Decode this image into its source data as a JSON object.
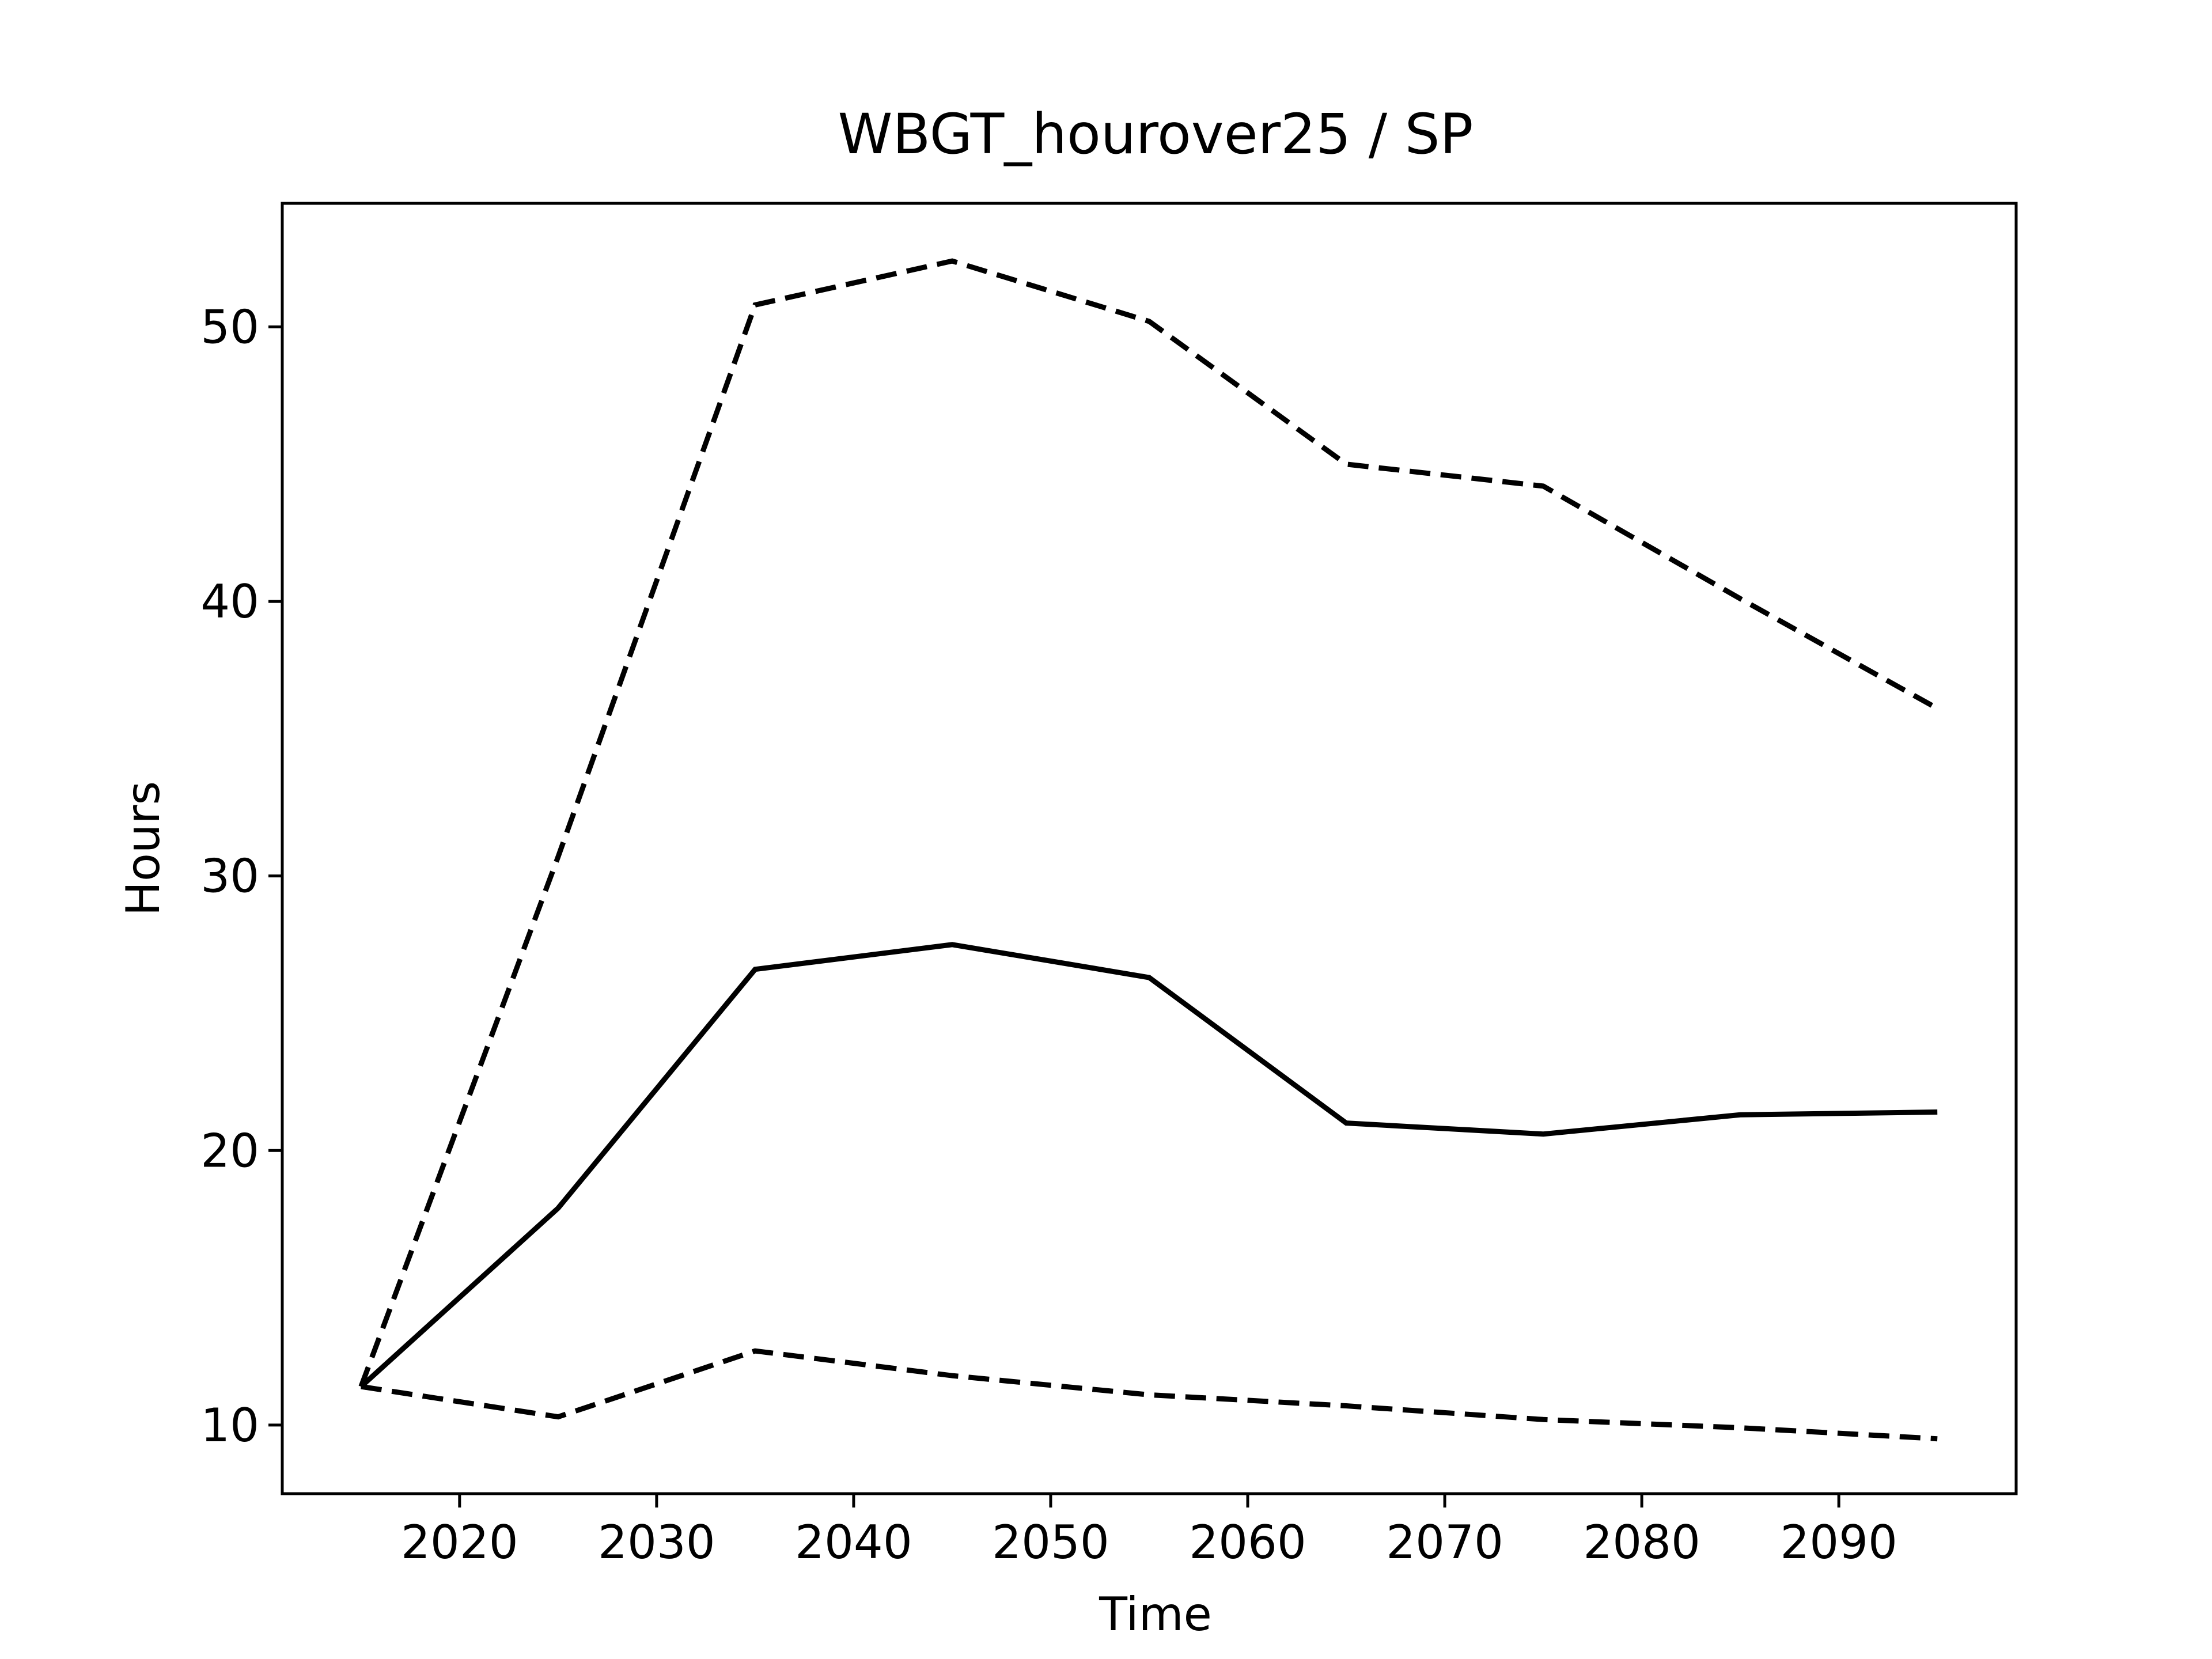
{
  "chart_data": {
    "type": "line",
    "title": "WBGT_hourover25 / SP",
    "xlabel": "Time",
    "ylabel": "Hours",
    "xlim": [
      2011,
      2099
    ],
    "ylim": [
      7.5,
      54.5
    ],
    "xticks": [
      2020,
      2030,
      2040,
      2050,
      2060,
      2070,
      2080,
      2090
    ],
    "yticks": [
      10,
      20,
      30,
      40,
      50
    ],
    "grid": false,
    "x": [
      2015,
      2025,
      2035,
      2045,
      2055,
      2065,
      2075,
      2085,
      2095
    ],
    "series": [
      {
        "style": "dashed",
        "color": "#000000",
        "values": [
          11.4,
          30.7,
          50.8,
          52.4,
          50.2,
          45.0,
          44.2,
          40.1,
          36.1
        ]
      },
      {
        "style": "solid",
        "color": "#000000",
        "values": [
          11.4,
          17.9,
          26.6,
          27.5,
          26.3,
          21.0,
          20.6,
          21.3,
          21.4
        ]
      },
      {
        "style": "dashed",
        "color": "#000000",
        "values": [
          11.4,
          10.3,
          12.7,
          11.8,
          11.1,
          10.7,
          10.2,
          9.9,
          9.5
        ]
      }
    ]
  }
}
